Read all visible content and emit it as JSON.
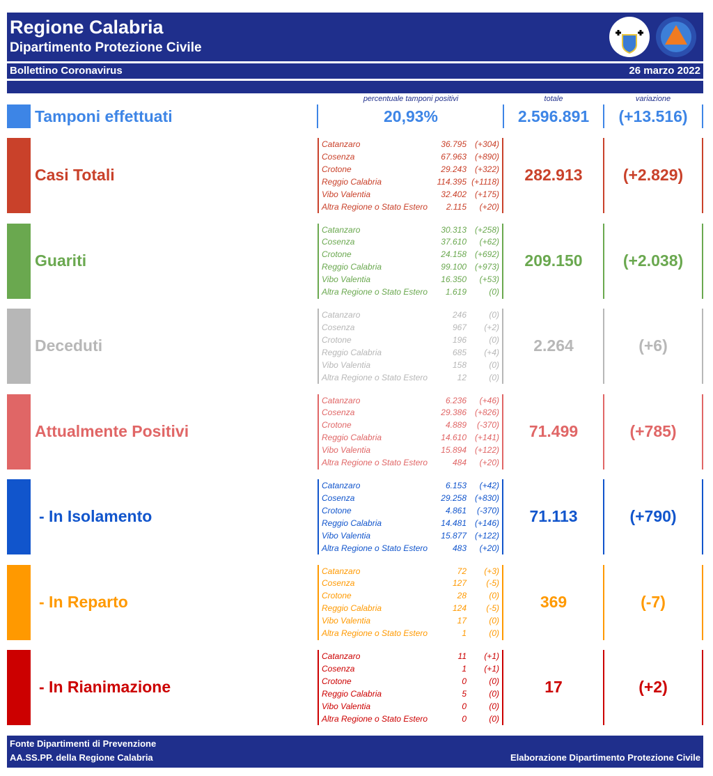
{
  "header": {
    "title": "Regione Calabria",
    "subtitle": "Dipartimento Protezione Civile",
    "bulletin": "Bollettino Coronavirus",
    "date": "26 marzo 2022"
  },
  "columns": {
    "percent": "percentuale tamponi positivi",
    "total": "totale",
    "change": "variazione"
  },
  "tamponi": {
    "label": "Tamponi effettuati",
    "percent": "20,93%",
    "total": "2.596.891",
    "change": "(+13.516)",
    "color": "#3d85e6"
  },
  "sections": [
    {
      "label": "Casi Totali",
      "total": "282.913",
      "change": "(+2.829)",
      "color": "#c9412a",
      "rows": [
        [
          "Catanzaro",
          "36.795",
          "(+304)"
        ],
        [
          "Cosenza",
          "67.963",
          "(+890)"
        ],
        [
          "Crotone",
          "29.243",
          "(+322)"
        ],
        [
          "Reggio Calabria",
          "114.395",
          "(+1118)"
        ],
        [
          "Vibo Valentia",
          "32.402",
          "(+175)"
        ],
        [
          "Altra Regione o Stato Estero",
          "2.115",
          "(+20)"
        ]
      ]
    },
    {
      "label": "Guariti",
      "total": "209.150",
      "change": "(+2.038)",
      "color": "#6aa84f",
      "rows": [
        [
          "Catanzaro",
          "30.313",
          "(+258)"
        ],
        [
          "Cosenza",
          "37.610",
          "(+62)"
        ],
        [
          "Crotone",
          "24.158",
          "(+692)"
        ],
        [
          "Reggio Calabria",
          "99.100",
          "(+973)"
        ],
        [
          "Vibo Valentia",
          "16.350",
          "(+53)"
        ],
        [
          "Altra Regione o Stato Estero",
          "1.619",
          "(0)"
        ]
      ]
    },
    {
      "label": "Deceduti",
      "total": "2.264",
      "change": "(+6)",
      "color": "#b7b7b7",
      "rows": [
        [
          "Catanzaro",
          "246",
          "(0)"
        ],
        [
          "Cosenza",
          "967",
          "(+2)"
        ],
        [
          "Crotone",
          "196",
          "(0)"
        ],
        [
          "Reggio Calabria",
          "685",
          "(+4)"
        ],
        [
          "Vibo Valentia",
          "158",
          "(0)"
        ],
        [
          "Altra Regione o Stato Estero",
          "12",
          "(0)"
        ]
      ]
    },
    {
      "label": "Attualmente Positivi",
      "total": "71.499",
      "change": "(+785)",
      "color": "#e06666",
      "rows": [
        [
          "Catanzaro",
          "6.236",
          "(+46)"
        ],
        [
          "Cosenza",
          "29.386",
          "(+826)"
        ],
        [
          "Crotone",
          "4.889",
          "(-370)"
        ],
        [
          "Reggio Calabria",
          "14.610",
          "(+141)"
        ],
        [
          "Vibo Valentia",
          "15.894",
          "(+122)"
        ],
        [
          "Altra Regione o Stato Estero",
          "484",
          "(+20)"
        ]
      ]
    },
    {
      "label": "- In Isolamento",
      "total": "71.113",
      "change": "(+790)",
      "color": "#1155cc",
      "rows": [
        [
          "Catanzaro",
          "6.153",
          "(+42)"
        ],
        [
          "Cosenza",
          "29.258",
          "(+830)"
        ],
        [
          "Crotone",
          "4.861",
          "(-370)"
        ],
        [
          "Reggio Calabria",
          "14.481",
          "(+146)"
        ],
        [
          "Vibo Valentia",
          "15.877",
          "(+122)"
        ],
        [
          "Altra Regione o Stato Estero",
          "483",
          "(+20)"
        ]
      ]
    },
    {
      "label": "- In Reparto",
      "total": "369",
      "change": "(-7)",
      "color": "#ff9900",
      "rows": [
        [
          "Catanzaro",
          "72",
          "(+3)"
        ],
        [
          "Cosenza",
          "127",
          "(-5)"
        ],
        [
          "Crotone",
          "28",
          "(0)"
        ],
        [
          "Reggio Calabria",
          "124",
          "(-5)"
        ],
        [
          "Vibo Valentia",
          "17",
          "(0)"
        ],
        [
          "Altra Regione o Stato Estero",
          "1",
          "(0)"
        ]
      ]
    },
    {
      "label": "- In Rianimazione",
      "total": "17",
      "change": "(+2)",
      "color": "#cc0000",
      "rows": [
        [
          "Catanzaro",
          "11",
          "(+1)"
        ],
        [
          "Cosenza",
          "1",
          "(+1)"
        ],
        [
          "Crotone",
          "0",
          "(0)"
        ],
        [
          "Reggio Calabria",
          "5",
          "(0)"
        ],
        [
          "Vibo Valentia",
          "0",
          "(0)"
        ],
        [
          "Altra Regione o Stato Estero",
          "0",
          "(0)"
        ]
      ]
    }
  ],
  "footer": {
    "line1": "Fonte Dipartimenti di Prevenzione",
    "line2": "AA.SS.PP.  della Regione Calabria",
    "right": "Elaborazione Dipartimento Protezione Civile"
  }
}
